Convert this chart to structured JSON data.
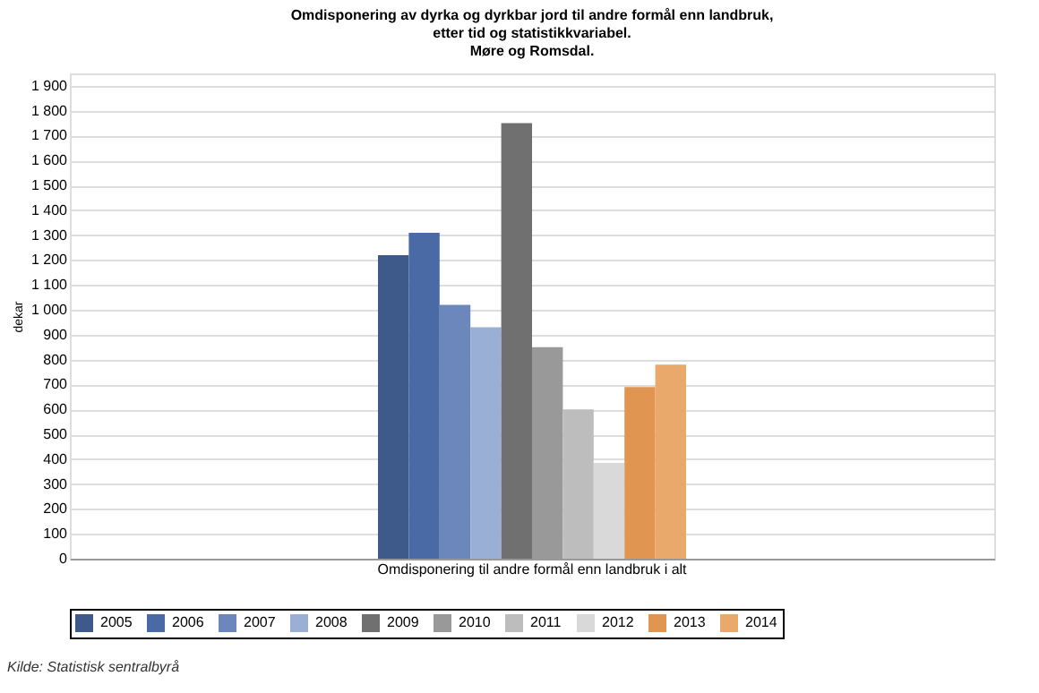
{
  "chart_data": {
    "type": "bar",
    "title": "Omdisponering av dyrka og dyrkbar jord til andre formål enn landbruk,\netter tid og statistikkvariabel.\nMøre og Romsdal.",
    "ylabel": "dekar",
    "categories": [
      "Omdisponering til andre formål enn landbruk i alt"
    ],
    "series": [
      {
        "name": "2005",
        "color": "#3d5a8a",
        "values": [
          1220
        ]
      },
      {
        "name": "2006",
        "color": "#4a6aa5",
        "values": [
          1310
        ]
      },
      {
        "name": "2007",
        "color": "#6b87bb",
        "values": [
          1020
        ]
      },
      {
        "name": "2008",
        "color": "#9aafd6",
        "values": [
          930
        ]
      },
      {
        "name": "2009",
        "color": "#707070",
        "values": [
          1750
        ]
      },
      {
        "name": "2010",
        "color": "#999999",
        "values": [
          850
        ]
      },
      {
        "name": "2011",
        "color": "#bdbdbd",
        "values": [
          600
        ]
      },
      {
        "name": "2012",
        "color": "#d9d9d9",
        "values": [
          385
        ]
      },
      {
        "name": "2013",
        "color": "#e09550",
        "values": [
          690
        ]
      },
      {
        "name": "2014",
        "color": "#e8a96a",
        "values": [
          780
        ]
      }
    ],
    "ylim": [
      0,
      1950
    ],
    "yticks": [
      0,
      100,
      200,
      300,
      400,
      500,
      600,
      700,
      800,
      900,
      {
        "value": 1000,
        "label": "1 000"
      },
      {
        "value": 1100,
        "label": "1 100"
      },
      {
        "value": 1200,
        "label": "1 200"
      },
      {
        "value": 1300,
        "label": "1 300"
      },
      {
        "value": 1400,
        "label": "1 400"
      },
      {
        "value": 1500,
        "label": "1 500"
      },
      {
        "value": 1600,
        "label": "1 600"
      },
      {
        "value": 1700,
        "label": "1 700"
      },
      {
        "value": 1800,
        "label": "1 800"
      },
      {
        "value": 1900,
        "label": "1 900"
      }
    ],
    "grid": "y",
    "legend": "bottom",
    "annotations": [
      "Kilde: Statistisk sentralbyrå"
    ]
  }
}
